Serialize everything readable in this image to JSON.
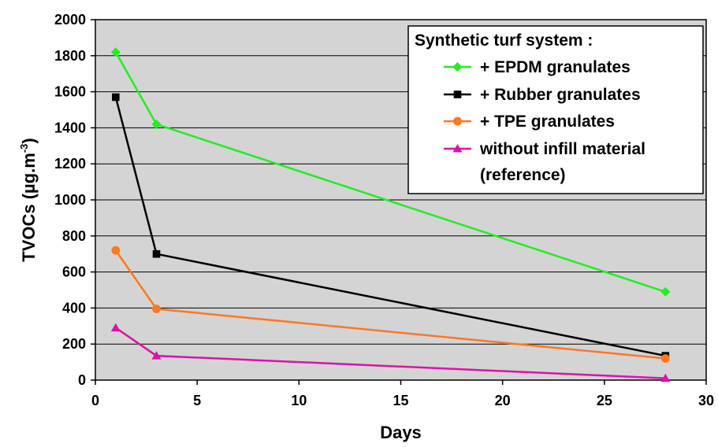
{
  "chart_data": {
    "type": "line",
    "xlabel": "Days",
    "ylabel": "TVOCs  (µg.m",
    "ylabel_sup": "-3",
    "ylabel_end": ")",
    "xlim": [
      0,
      30
    ],
    "ylim": [
      0,
      2000
    ],
    "xticks": [
      0,
      5,
      10,
      15,
      20,
      25,
      30
    ],
    "yticks": [
      0,
      200,
      400,
      600,
      800,
      1000,
      1200,
      1400,
      1600,
      1800,
      2000
    ],
    "grid": "horizontal",
    "plot_background": "#d4d4d4",
    "legend": {
      "position": "top-right",
      "title": "Synthetic turf system :"
    },
    "series": [
      {
        "name": "+ EPDM granulates",
        "color": "#22ee22",
        "marker": "diamond",
        "x": [
          1,
          3,
          28
        ],
        "y": [
          1820,
          1420,
          490
        ]
      },
      {
        "name": "+ Rubber granulates",
        "color": "#000000",
        "marker": "square",
        "x": [
          1,
          3,
          28
        ],
        "y": [
          1570,
          700,
          135
        ]
      },
      {
        "name": "+ TPE granulates",
        "color": "#ff7722",
        "marker": "circle",
        "x": [
          1,
          3,
          28
        ],
        "y": [
          720,
          395,
          120
        ]
      },
      {
        "name": "without infill material",
        "name_line2": "(reference)",
        "color": "#dd11aa",
        "marker": "triangle",
        "x": [
          1,
          3,
          28
        ],
        "y": [
          290,
          135,
          10
        ]
      }
    ]
  }
}
